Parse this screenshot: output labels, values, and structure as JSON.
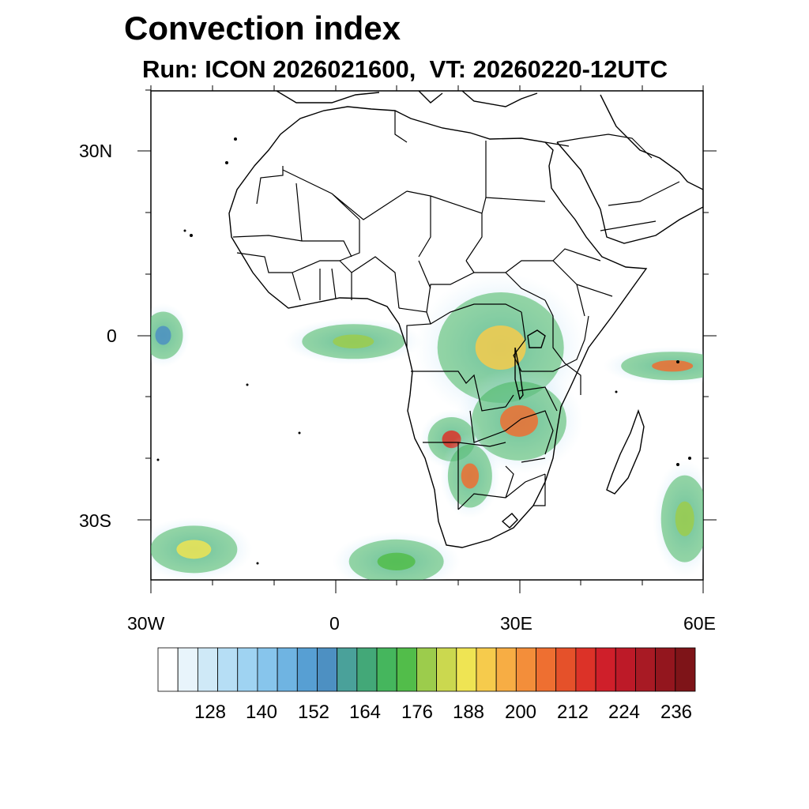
{
  "header": {
    "title": "Convection index",
    "subtitle": "Run: ICON 2026021600,  VT: 20260220-12UTC"
  },
  "map": {
    "lon_range": [
      -30,
      60
    ],
    "lat_range": [
      -40,
      40
    ],
    "y_tick_labels": [
      "30N",
      "0",
      "30S"
    ],
    "x_tick_labels": [
      "30W",
      "0",
      "30E",
      "60E"
    ]
  },
  "colorbar": {
    "labels": [
      "128",
      "140",
      "152",
      "164",
      "176",
      "188",
      "200",
      "212",
      "224",
      "236"
    ],
    "colors": [
      "#ffffff",
      "#e8f4fb",
      "#cfe9f7",
      "#b6def5",
      "#9fd3f2",
      "#87c5ec",
      "#6fb4e2",
      "#579fd3",
      "#4d90c2",
      "#4aa19a",
      "#43a878",
      "#45b65d",
      "#52bd4a",
      "#9ccc4c",
      "#cbd84f",
      "#efe453",
      "#f6cb4c",
      "#f7ad44",
      "#f38e3a",
      "#ee6f31",
      "#e5512a",
      "#dc3228",
      "#cf1f2a",
      "#bd1a28",
      "#a81a24",
      "#93161e",
      "#7e1418"
    ]
  },
  "convection_areas": [
    {
      "lon": 3,
      "lat": -1,
      "value": 176
    },
    {
      "lon": 27,
      "lat": -2,
      "value": 188
    },
    {
      "lon": 30,
      "lat": -14,
      "value": 200
    },
    {
      "lon": 19,
      "lat": -17,
      "value": 212
    },
    {
      "lon": 22,
      "lat": -23,
      "value": 200
    },
    {
      "lon": 55,
      "lat": -5,
      "value": 200
    },
    {
      "lon": 57,
      "lat": -30,
      "value": 176
    },
    {
      "lon": -23,
      "lat": -35,
      "value": 182
    },
    {
      "lon": 10,
      "lat": -37,
      "value": 170
    },
    {
      "lon": -28,
      "lat": 0,
      "value": 150
    }
  ]
}
